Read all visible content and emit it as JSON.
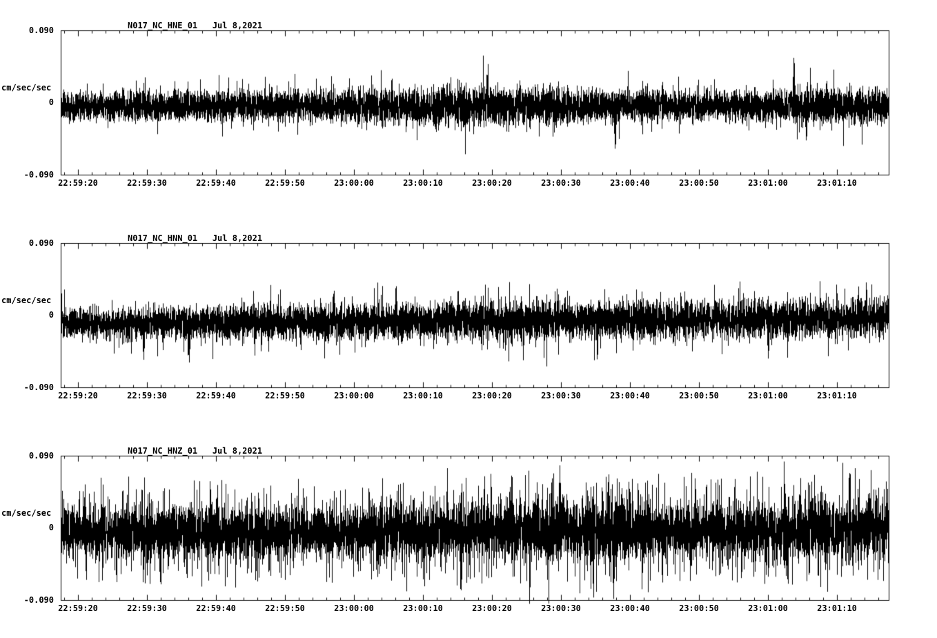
{
  "page": {
    "background": "#ffffff",
    "text_color": "#000000"
  },
  "chart_data": [
    {
      "id": "trace-hne",
      "type": "line",
      "title": "N017_NC_HNE_01   Jul 8,2021",
      "station": "N017",
      "network": "NC",
      "channel": "HNE",
      "location": "01",
      "date": "Jul 8,2021",
      "ylabel": "cm/sec/sec",
      "ylim": [
        -0.09,
        0.09
      ],
      "ytick_labels": {
        "top": "0.090",
        "mid": "0",
        "bottom": "-0.090"
      },
      "x_tick_labels": [
        "22:59:20",
        "22:59:30",
        "22:59:40",
        "22:59:50",
        "23:00:00",
        "23:00:10",
        "23:00:20",
        "23:00:30",
        "23:00:40",
        "23:00:50",
        "23:01:00",
        "23:01:10"
      ],
      "x_axis": {
        "duration_seconds": 120,
        "major_tick_seconds": 10,
        "minor_tick_seconds": 2
      },
      "grid": false,
      "legend": false,
      "trace_color": "#000000",
      "noise": {
        "seed": 101,
        "offset": [
          -0.004,
          -0.004
        ],
        "envelope": [
          0.018,
          0.017,
          0.017,
          0.018,
          0.019,
          0.021,
          0.024,
          0.021,
          0.019,
          0.018,
          0.019,
          0.022,
          0.02
        ],
        "spike_prob": 0.06,
        "spikes": [
          {
            "t": 0.4,
            "a": 0.036
          },
          {
            "t": 0.515,
            "a": 0.042
          },
          {
            "t": 0.67,
            "a": -0.055
          },
          {
            "t": 0.886,
            "a": 0.062
          },
          {
            "t": 0.901,
            "a": -0.044
          }
        ]
      }
    },
    {
      "id": "trace-hnn",
      "type": "line",
      "title": "N017_NC_HNN_01   Jul 8,2021",
      "station": "N017",
      "network": "NC",
      "channel": "HNN",
      "location": "01",
      "date": "Jul 8,2021",
      "ylabel": "cm/sec/sec",
      "ylim": [
        -0.09,
        0.09
      ],
      "ytick_labels": {
        "top": "0.090",
        "mid": "0",
        "bottom": "-0.090"
      },
      "x_tick_labels": [
        "22:59:20",
        "22:59:30",
        "22:59:40",
        "22:59:50",
        "23:00:00",
        "23:00:10",
        "23:00:20",
        "23:00:30",
        "23:00:40",
        "23:00:50",
        "23:01:00",
        "23:01:10"
      ],
      "x_axis": {
        "duration_seconds": 120,
        "major_tick_seconds": 10,
        "minor_tick_seconds": 2
      },
      "grid": false,
      "legend": false,
      "trace_color": "#000000",
      "noise": {
        "seed": 202,
        "offset": [
          -0.01,
          -0.003
        ],
        "envelope": [
          0.017,
          0.018,
          0.019,
          0.02,
          0.021,
          0.022,
          0.023,
          0.023,
          0.022,
          0.023,
          0.022,
          0.022,
          0.023
        ],
        "spike_prob": 0.07,
        "spikes": [
          {
            "t": 0.1,
            "a": -0.046
          },
          {
            "t": 0.155,
            "a": -0.05
          },
          {
            "t": 0.33,
            "a": 0.04
          },
          {
            "t": 0.405,
            "a": 0.046
          },
          {
            "t": 0.48,
            "a": 0.04
          },
          {
            "t": 0.855,
            "a": -0.05
          }
        ]
      }
    },
    {
      "id": "trace-hnz",
      "type": "line",
      "title": "N017_NC_HNZ_01   Jul 8,2021",
      "station": "N017",
      "network": "NC",
      "channel": "HNZ",
      "location": "01",
      "date": "Jul 8,2021",
      "ylabel": "cm/sec/sec",
      "ylim": [
        -0.09,
        0.09
      ],
      "ytick_labels": {
        "top": "0.090",
        "mid": "0",
        "bottom": "-0.090"
      },
      "x_tick_labels": [
        "22:59:20",
        "22:59:30",
        "22:59:40",
        "22:59:50",
        "23:00:00",
        "23:00:10",
        "23:00:20",
        "23:00:30",
        "23:00:40",
        "23:00:50",
        "23:01:00",
        "23:01:10"
      ],
      "x_axis": {
        "duration_seconds": 120,
        "major_tick_seconds": 10,
        "minor_tick_seconds": 2
      },
      "grid": false,
      "legend": false,
      "trace_color": "#000000",
      "noise": {
        "seed": 303,
        "offset": [
          -0.006,
          -0.002
        ],
        "envelope": [
          0.026,
          0.028,
          0.029,
          0.028,
          0.029,
          0.03,
          0.031,
          0.033,
          0.034,
          0.031,
          0.03,
          0.032,
          0.033
        ],
        "spike_prob": 0.3,
        "spikes": [
          {
            "t": 0.12,
            "a": -0.062
          },
          {
            "t": 0.545,
            "a": 0.074
          },
          {
            "t": 0.603,
            "a": 0.082
          },
          {
            "t": 0.662,
            "a": 0.072
          },
          {
            "t": 0.668,
            "a": -0.085
          },
          {
            "t": 0.875,
            "a": 0.058
          },
          {
            "t": 0.985,
            "a": 0.05
          }
        ]
      }
    }
  ]
}
